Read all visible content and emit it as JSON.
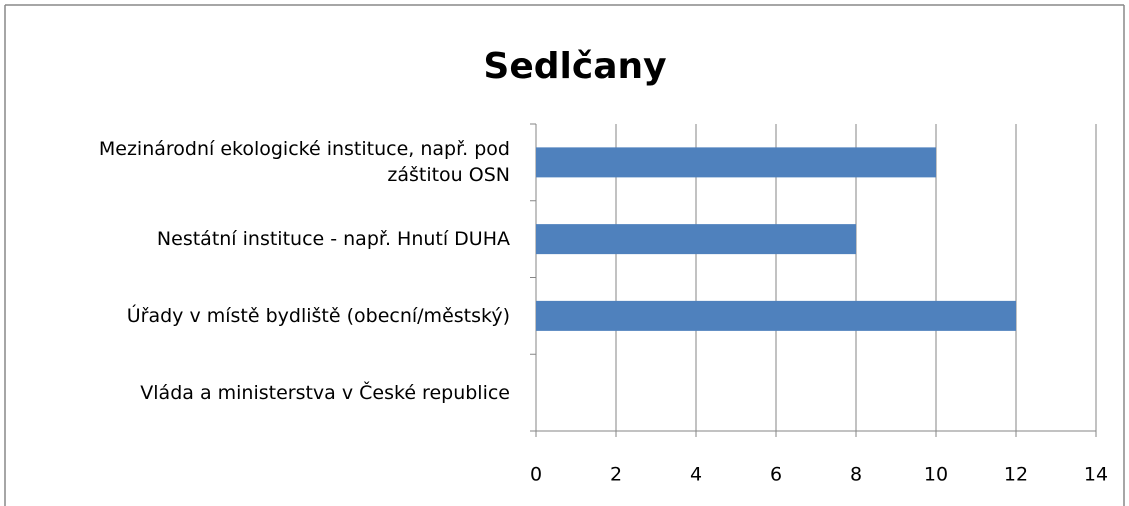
{
  "chart_data": {
    "type": "barh",
    "title": "Sedlčany",
    "categories": [
      "Mezinárodní ekologické instituce, např. pod záštitou OSN",
      "Nestátní instituce - např. Hnutí DUHA",
      "Úřady v místě bydliště (obecní/městský)",
      "Vláda a ministerstva v České republice"
    ],
    "values": [
      10,
      8,
      12,
      0
    ],
    "color": "#4f81bd",
    "xlim": [
      0,
      14
    ],
    "xticks": [
      0,
      2,
      4,
      6,
      8,
      10,
      12,
      14
    ],
    "grid": true
  }
}
